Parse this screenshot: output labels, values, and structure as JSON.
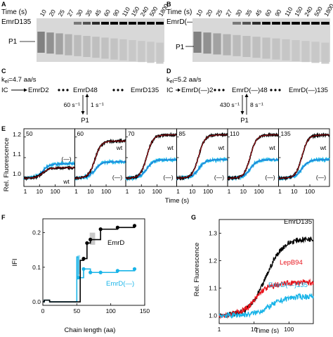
{
  "panel_a": {
    "letter": "A",
    "time_label": "Time (s)",
    "times": [
      "10",
      "20",
      "25",
      "27",
      "30",
      "35",
      "45",
      "60",
      "90",
      "110",
      "150",
      "240",
      "500",
      "1800"
    ],
    "band_label": "EmrD135",
    "pool_label": "P1"
  },
  "panel_b": {
    "letter": "B",
    "time_label": "Time (s)",
    "times": [
      "10",
      "20",
      "25",
      "27",
      "30",
      "35",
      "45",
      "60",
      "90",
      "110",
      "150",
      "240",
      "500",
      "1800"
    ],
    "band_label": "EmrD(—)135",
    "pool_label": "P1"
  },
  "panel_c": {
    "letter": "C",
    "rate": "k",
    "rate_sub": "el",
    "rate_value": "=4.7 aa/s",
    "start": "IC",
    "step1": "EmrD2",
    "step2": "EmrD48",
    "step3": "EmrD135",
    "k_off": "60 s⁻¹",
    "k_on": "1 s⁻¹",
    "product": "P1"
  },
  "panel_d": {
    "letter": "D",
    "rate": "k",
    "rate_sub": "el",
    "rate_value": "=5.2 aa/s",
    "start": "IC",
    "step1": "EmrD(—)2",
    "step2": "EmrD(—)48",
    "step3": "EmrD(—)135",
    "k_off": "430 s⁻¹",
    "k_on": "8 s⁻¹",
    "product": "P1"
  },
  "panel_e": {
    "letter": "E",
    "ylabel": "Rel. Fluorescence",
    "xlabel": "Time (s)",
    "yticks": [
      "1.0",
      "1.1",
      "1.2"
    ],
    "xticks": [
      "1",
      "10",
      "100"
    ],
    "wt_label": "wt",
    "minus_label": "(—)",
    "colors": {
      "wt": "#000000",
      "fit": "#e8141c",
      "minus": "#19b4e8",
      "minus_fit": "#3050c8"
    }
  },
  "panel_f": {
    "letter": "F",
    "ylabel": "IFI",
    "xlabel": "Chain length (aa)",
    "yticks": [
      "0.0",
      "0.1",
      "0.2"
    ],
    "xticks": [
      "0",
      "50",
      "100",
      "150"
    ],
    "series1_label": "EmrD",
    "series2_label": "EmrD(—)",
    "colors": {
      "s1": "#000000",
      "s2": "#19b4e8"
    }
  },
  "panel_g": {
    "letter": "G",
    "ylabel": "Rel. Fluorescence",
    "xlabel": "Time (s)",
    "yticks": [
      "1.0",
      "1.1",
      "1.2",
      "1.3"
    ],
    "xticks": [
      "1",
      "10",
      "100"
    ],
    "label1": "EmrD135",
    "label2": "LepB94",
    "label3": "EmrD(—)135",
    "colors": {
      "c1": "#000000",
      "c2": "#e8141c",
      "c3": "#19b4e8"
    }
  },
  "chart_data": [
    {
      "type": "line",
      "panel": "E",
      "x_scale": "log",
      "xlim": [
        1,
        1800
      ],
      "ylim": [
        0.96,
        1.24
      ],
      "subplots": [
        {
          "label": "50",
          "wt_final": 1.05,
          "minus_final": 1.07
        },
        {
          "label": "60",
          "wt_final": 1.18,
          "minus_final": 1.08
        },
        {
          "label": "70",
          "wt_final": 1.21,
          "minus_final": 1.09
        },
        {
          "label": "85",
          "wt_final": 1.21,
          "minus_final": 1.09
        },
        {
          "label": "110",
          "wt_final": 1.21,
          "minus_final": 1.09
        },
        {
          "label": "135",
          "wt_final": 1.21,
          "minus_final": 1.09
        }
      ]
    },
    {
      "type": "line",
      "panel": "F",
      "xlim": [
        0,
        150
      ],
      "ylim": [
        -0.01,
        0.24
      ],
      "series": [
        {
          "name": "EmrD",
          "x": [
            0,
            2,
            10,
            50,
            55,
            60,
            65,
            70,
            85,
            110,
            135
          ],
          "y": [
            0.0,
            0.005,
            0.0,
            0.0,
            0.12,
            0.125,
            0.17,
            0.18,
            0.21,
            0.215,
            0.22
          ]
        },
        {
          "name": "EmrD(—)",
          "x": [
            0,
            2,
            10,
            48,
            50,
            52,
            60,
            70,
            85,
            110,
            135
          ],
          "y": [
            0.0,
            0.005,
            0.0,
            0.0,
            0.13,
            0.07,
            0.095,
            0.085,
            0.085,
            0.09,
            0.095
          ]
        }
      ]
    },
    {
      "type": "line",
      "panel": "G",
      "x_scale": "log",
      "xlim": [
        1,
        500
      ],
      "ylim": [
        0.97,
        1.35
      ],
      "series": [
        {
          "name": "EmrD135",
          "final": 1.28,
          "half_time": 22
        },
        {
          "name": "LepB94",
          "final": 1.12,
          "half_time": 12
        },
        {
          "name": "EmrD(—)135",
          "final": 1.07,
          "half_time": 30
        }
      ]
    }
  ]
}
